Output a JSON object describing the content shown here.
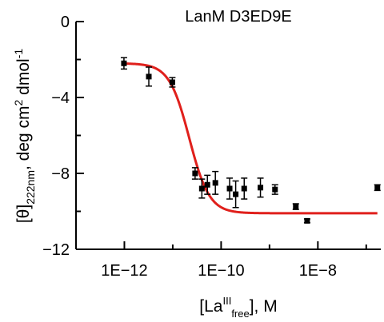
{
  "chart_data": {
    "type": "scatter",
    "title": "LanM D3ED9E",
    "xlabel": {
      "open": "[La",
      "sup": "III",
      "sub": "free",
      "close": "], M"
    },
    "ylabel": {
      "open": "[θ]",
      "sub": "222nm",
      "mid": ", deg cm",
      "sup1": "2",
      "mid2": " dmol",
      "sup2": "-1"
    },
    "x_scale": "log",
    "xlim": [
      1e-13,
      2e-07
    ],
    "ylim": [
      -12,
      0
    ],
    "x_ticks": [
      {
        "value": 1e-12,
        "label": "1E−12"
      },
      {
        "value": 1e-10,
        "label": "1E−10"
      },
      {
        "value": 1e-08,
        "label": "1E−8"
      }
    ],
    "y_ticks": [
      {
        "value": 0,
        "label": "0"
      },
      {
        "value": -4,
        "label": "−4"
      },
      {
        "value": -8,
        "label": "−8"
      },
      {
        "value": -12,
        "label": "−12"
      }
    ],
    "series": [
      {
        "kind": "points",
        "color": "#000000",
        "x": [
          9.8e-13,
          3.2e-12,
          9.8e-12,
          2.9e-11,
          4e-11,
          5.2e-11,
          7.6e-11,
          1.5e-10,
          2e-10,
          3e-10,
          6.5e-10,
          1.3e-09,
          3.5e-09,
          6e-09,
          1.7e-07
        ],
        "y": [
          -2.2,
          -2.9,
          -3.2,
          -8.0,
          -8.8,
          -8.6,
          -8.5,
          -8.8,
          -9.1,
          -8.8,
          -8.75,
          -8.85,
          -9.75,
          -10.5,
          -8.75
        ],
        "err": [
          0.3,
          0.5,
          0.25,
          0.3,
          0.5,
          0.5,
          0.6,
          0.55,
          0.7,
          0.55,
          0.5,
          0.25,
          0.15,
          0.1,
          0.15
        ]
      },
      {
        "kind": "fit",
        "color": "#e0201c",
        "y_top": -2.2,
        "y_bottom": -10.1,
        "x_mid": 2.2e-11,
        "hill": 2.1,
        "x_start": 9.8e-13,
        "x_end": 1.7e-07
      }
    ],
    "grid": false,
    "legend": "none"
  }
}
